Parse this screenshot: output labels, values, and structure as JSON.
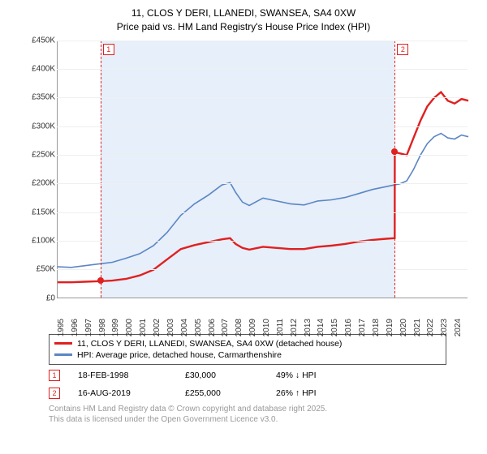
{
  "title_line1": "11, CLOS Y DERI, LLANEDI, SWANSEA, SA4 0XW",
  "title_line2": "Price paid vs. HM Land Registry's House Price Index (HPI)",
  "chart": {
    "type": "line",
    "x_years": [
      1995,
      1996,
      1997,
      1998,
      1999,
      2000,
      2001,
      2002,
      2003,
      2004,
      2005,
      2006,
      2007,
      2008,
      2009,
      2010,
      2011,
      2012,
      2013,
      2014,
      2015,
      2016,
      2017,
      2018,
      2019,
      2020,
      2021,
      2022,
      2023,
      2024
    ],
    "x_domain": [
      1995,
      2025
    ],
    "y_domain": [
      0,
      450000
    ],
    "y_ticks": [
      0,
      50000,
      100000,
      150000,
      200000,
      250000,
      300000,
      350000,
      400000,
      450000
    ],
    "y_tick_labels": [
      "£0",
      "£50K",
      "£100K",
      "£150K",
      "£200K",
      "£250K",
      "£300K",
      "£350K",
      "£400K",
      "£450K"
    ],
    "shade_range": [
      1998.13,
      2019.63
    ],
    "grid_color": "#efefef",
    "background_color": "#ffffff",
    "label_fontsize": 10,
    "series": {
      "price_paid": {
        "label": "11, CLOS Y DERI, LLANEDI, SWANSEA, SA4 0XW (detached house)",
        "color": "#e02020",
        "line_width": 2.4,
        "xy": [
          [
            1995,
            28000
          ],
          [
            1996,
            28000
          ],
          [
            1997,
            29000
          ],
          [
            1998.13,
            30000
          ],
          [
            1999,
            31000
          ],
          [
            2000,
            34000
          ],
          [
            2001,
            40000
          ],
          [
            2002,
            50000
          ],
          [
            2003,
            68000
          ],
          [
            2004,
            86000
          ],
          [
            2005,
            93000
          ],
          [
            2006,
            98000
          ],
          [
            2007,
            103000
          ],
          [
            2007.6,
            105000
          ],
          [
            2008,
            95000
          ],
          [
            2008.5,
            88000
          ],
          [
            2009,
            85000
          ],
          [
            2010,
            90000
          ],
          [
            2011,
            88000
          ],
          [
            2012,
            86000
          ],
          [
            2013,
            86000
          ],
          [
            2014,
            90000
          ],
          [
            2015,
            92000
          ],
          [
            2016,
            95000
          ],
          [
            2017,
            99000
          ],
          [
            2018,
            102000
          ],
          [
            2019,
            104000
          ],
          [
            2019.62,
            105000
          ],
          [
            2019.63,
            255000
          ],
          [
            2020,
            253000
          ],
          [
            2020.5,
            250000
          ],
          [
            2021,
            280000
          ],
          [
            2021.5,
            310000
          ],
          [
            2022,
            335000
          ],
          [
            2022.5,
            350000
          ],
          [
            2023,
            360000
          ],
          [
            2023.5,
            345000
          ],
          [
            2024,
            340000
          ],
          [
            2024.5,
            348000
          ],
          [
            2025,
            345000
          ]
        ]
      },
      "hpi": {
        "label": "HPI: Average price, detached house, Carmarthenshire",
        "color": "#5b86c4",
        "line_width": 1.6,
        "xy": [
          [
            1995,
            55000
          ],
          [
            1996,
            54000
          ],
          [
            1997,
            57000
          ],
          [
            1998,
            60000
          ],
          [
            1999,
            63000
          ],
          [
            2000,
            70000
          ],
          [
            2001,
            78000
          ],
          [
            2002,
            92000
          ],
          [
            2003,
            115000
          ],
          [
            2004,
            145000
          ],
          [
            2005,
            165000
          ],
          [
            2006,
            180000
          ],
          [
            2007,
            198000
          ],
          [
            2007.6,
            202000
          ],
          [
            2008,
            185000
          ],
          [
            2008.5,
            168000
          ],
          [
            2009,
            162000
          ],
          [
            2010,
            175000
          ],
          [
            2011,
            170000
          ],
          [
            2012,
            165000
          ],
          [
            2013,
            163000
          ],
          [
            2014,
            170000
          ],
          [
            2015,
            172000
          ],
          [
            2016,
            176000
          ],
          [
            2017,
            183000
          ],
          [
            2018,
            190000
          ],
          [
            2019,
            195000
          ],
          [
            2020,
            200000
          ],
          [
            2020.5,
            205000
          ],
          [
            2021,
            225000
          ],
          [
            2021.5,
            250000
          ],
          [
            2022,
            270000
          ],
          [
            2022.5,
            282000
          ],
          [
            2023,
            288000
          ],
          [
            2023.5,
            280000
          ],
          [
            2024,
            278000
          ],
          [
            2024.5,
            285000
          ],
          [
            2025,
            282000
          ]
        ]
      }
    },
    "markers": [
      {
        "id": "1",
        "x": 1998.13,
        "y": 30000
      },
      {
        "id": "2",
        "x": 2019.63,
        "y": 255000
      }
    ]
  },
  "legend": {
    "s1": {
      "color": "#e02020",
      "label": "11, CLOS Y DERI, LLANEDI, SWANSEA, SA4 0XW (detached house)"
    },
    "s2": {
      "color": "#5b86c4",
      "label": "HPI: Average price, detached house, Carmarthenshire"
    }
  },
  "transactions": [
    {
      "id": "1",
      "date": "18-FEB-1998",
      "price": "£30,000",
      "delta": "49% ↓ HPI"
    },
    {
      "id": "2",
      "date": "16-AUG-2019",
      "price": "£255,000",
      "delta": "26% ↑ HPI"
    }
  ],
  "credit_line1": "Contains HM Land Registry data © Crown copyright and database right 2025.",
  "credit_line2": "This data is licensed under the Open Government Licence v3.0."
}
